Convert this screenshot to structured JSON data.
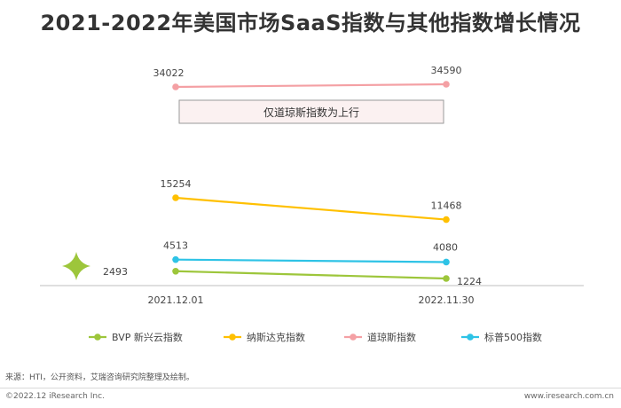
{
  "title": "2021-2022年美国市场SaaS指数与其他指数增长情况",
  "annotation": "仅道琼斯指数为上行",
  "footer": {
    "note": "来源：HTI，公开资料，艾瑞咨询研究院整理及绘制。",
    "copyright": "©2022.12 iResearch Inc.",
    "website": "www.iresearch.com.cn"
  },
  "chart_data": {
    "type": "line",
    "categories": [
      "2021.12.01",
      "2022.11.30"
    ],
    "series": [
      {
        "name": "道琼斯指数",
        "values": [
          34022,
          34590
        ],
        "color": "#f4a0a4"
      },
      {
        "name": "纳斯达克指数",
        "values": [
          15254,
          11468
        ],
        "color": "#ffc000"
      },
      {
        "name": "标普500指数",
        "values": [
          4513,
          4080
        ],
        "color": "#2ec3e6"
      },
      {
        "name": "BVP 新兴云指数",
        "values": [
          2493,
          1224
        ],
        "color": "#9dc63b"
      }
    ],
    "legend_position": "bottom",
    "grid": false
  }
}
